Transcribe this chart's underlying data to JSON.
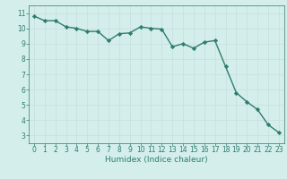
{
  "x": [
    0,
    1,
    2,
    3,
    4,
    5,
    6,
    7,
    8,
    9,
    10,
    11,
    12,
    13,
    14,
    15,
    16,
    17,
    18,
    19,
    20,
    21,
    22,
    23
  ],
  "y": [
    10.8,
    10.5,
    10.5,
    10.1,
    10.0,
    9.8,
    9.8,
    9.2,
    9.65,
    9.7,
    10.1,
    10.0,
    9.95,
    8.8,
    9.0,
    8.7,
    9.1,
    9.2,
    7.5,
    5.8,
    5.2,
    4.7,
    3.7,
    3.2
  ],
  "line_color": "#2e7d6e",
  "marker": "D",
  "marker_size": 2.2,
  "line_width": 1.0,
  "xlabel": "Humidex (Indice chaleur)",
  "xlim": [
    -0.5,
    23.5
  ],
  "ylim": [
    2.5,
    11.5
  ],
  "yticks": [
    3,
    4,
    5,
    6,
    7,
    8,
    9,
    10,
    11
  ],
  "xticks": [
    0,
    1,
    2,
    3,
    4,
    5,
    6,
    7,
    8,
    9,
    10,
    11,
    12,
    13,
    14,
    15,
    16,
    17,
    18,
    19,
    20,
    21,
    22,
    23
  ],
  "bg_color": "#d4eeec",
  "grid_major_color": "#c8dede",
  "grid_minor_color": "#c8dede",
  "tick_color": "#2e7d6e",
  "label_color": "#2e7d6e",
  "xlabel_fontsize": 6.5,
  "tick_fontsize": 5.5,
  "figsize": [
    3.2,
    2.0
  ],
  "dpi": 100
}
